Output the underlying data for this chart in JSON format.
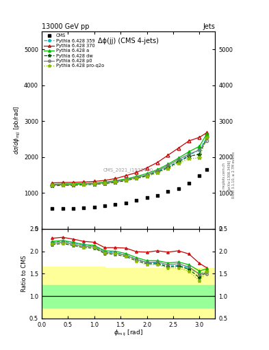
{
  "title_top": "13000 GeV pp",
  "title_right": "Jets",
  "plot_title": "Δϕ(jj) (CMS 4-jets)",
  "ylabel_main": "dσ/dϕ_{mjj} [pb/rad]",
  "ylabel_ratio": "Ratio to CMS",
  "watermark": "CMS_2021_I1932460",
  "rivet_text": "Rivet 3.1.10, ≥ 2.7M events",
  "arxiv_text": "[arXiv:1306.3436]",
  "mcplots_text": "mcplots.cern.ch",
  "x_data": [
    0.2,
    0.4,
    0.6,
    0.8,
    1.0,
    1.2,
    1.4,
    1.6,
    1.8,
    2.0,
    2.2,
    2.4,
    2.6,
    2.8,
    3.0,
    3.14
  ],
  "cms_data": [
    560,
    560,
    570,
    590,
    600,
    650,
    680,
    720,
    800,
    870,
    930,
    1050,
    1120,
    1280,
    1480,
    1650
  ],
  "py_359": [
    1230,
    1245,
    1250,
    1260,
    1270,
    1290,
    1320,
    1370,
    1430,
    1500,
    1600,
    1720,
    1880,
    2050,
    2200,
    2550
  ],
  "py_370": [
    1280,
    1290,
    1295,
    1305,
    1320,
    1350,
    1400,
    1480,
    1570,
    1700,
    1850,
    2050,
    2250,
    2450,
    2550,
    2680
  ],
  "py_a": [
    1240,
    1250,
    1255,
    1265,
    1275,
    1300,
    1340,
    1390,
    1460,
    1540,
    1650,
    1800,
    1970,
    2150,
    2300,
    2650
  ],
  "py_dw": [
    1200,
    1210,
    1215,
    1225,
    1240,
    1260,
    1295,
    1340,
    1410,
    1470,
    1580,
    1700,
    1870,
    2020,
    2080,
    2550
  ],
  "py_p0": [
    1220,
    1230,
    1235,
    1245,
    1258,
    1278,
    1315,
    1360,
    1430,
    1500,
    1620,
    1760,
    1930,
    2080,
    2200,
    2450
  ],
  "py_proq2o": [
    1210,
    1220,
    1225,
    1235,
    1250,
    1270,
    1300,
    1350,
    1400,
    1460,
    1560,
    1680,
    1830,
    1950,
    1980,
    2550
  ],
  "ratio_359": [
    2.2,
    2.22,
    2.19,
    2.14,
    2.12,
    2.0,
    1.97,
    1.92,
    1.82,
    1.75,
    1.74,
    1.67,
    1.68,
    1.63,
    1.49,
    1.55
  ],
  "ratio_370": [
    2.29,
    2.31,
    2.27,
    2.22,
    2.2,
    2.08,
    2.08,
    2.07,
    1.99,
    1.98,
    2.01,
    1.98,
    2.01,
    1.94,
    1.73,
    1.63
  ],
  "ratio_a": [
    2.22,
    2.24,
    2.2,
    2.15,
    2.13,
    2.01,
    2.0,
    1.95,
    1.86,
    1.79,
    1.79,
    1.74,
    1.76,
    1.7,
    1.56,
    1.61
  ],
  "ratio_dw": [
    2.15,
    2.17,
    2.13,
    2.08,
    2.07,
    1.95,
    1.93,
    1.88,
    1.79,
    1.72,
    1.72,
    1.65,
    1.67,
    1.6,
    1.41,
    1.55
  ],
  "ratio_p0": [
    2.18,
    2.2,
    2.16,
    2.11,
    2.1,
    1.97,
    1.96,
    1.91,
    1.82,
    1.75,
    1.76,
    1.7,
    1.72,
    1.65,
    1.49,
    1.49
  ],
  "ratio_proq2o": [
    2.16,
    2.18,
    2.14,
    2.09,
    2.08,
    1.96,
    1.94,
    1.89,
    1.78,
    1.7,
    1.7,
    1.63,
    1.63,
    1.55,
    1.34,
    1.55
  ],
  "band_x": [
    0.0,
    0.2,
    0.4,
    0.6,
    0.8,
    1.0,
    1.2,
    1.4,
    1.6,
    1.8,
    2.0,
    2.2,
    2.4,
    2.6,
    2.8,
    3.0,
    3.14,
    3.3
  ],
  "green_upper": [
    1.25,
    1.25,
    1.25,
    1.25,
    1.25,
    1.25,
    1.25,
    1.25,
    1.25,
    1.25,
    1.25,
    1.25,
    1.25,
    1.25,
    1.25,
    1.25,
    1.25,
    1.25
  ],
  "green_lower": [
    0.75,
    0.75,
    0.75,
    0.75,
    0.75,
    0.75,
    0.75,
    0.75,
    0.75,
    0.75,
    0.75,
    0.75,
    0.75,
    0.75,
    0.75,
    0.75,
    0.75,
    0.75
  ],
  "yellow_upper": [
    1.65,
    1.65,
    1.65,
    1.65,
    1.65,
    1.65,
    1.62,
    1.62,
    1.62,
    1.62,
    1.62,
    1.62,
    1.62,
    1.62,
    1.62,
    1.62,
    1.62,
    1.62
  ],
  "yellow_lower": [
    0.38,
    0.38,
    0.38,
    0.38,
    0.38,
    0.38,
    0.4,
    0.4,
    0.4,
    0.4,
    0.4,
    0.4,
    0.4,
    0.4,
    0.4,
    0.4,
    0.4,
    0.4
  ],
  "ylim_main": [
    0,
    5500
  ],
  "ylim_ratio": [
    0.5,
    2.5
  ],
  "yticks_main": [
    0,
    1000,
    2000,
    3000,
    4000,
    5000
  ],
  "yticks_ratio": [
    0.5,
    1.0,
    1.5,
    2.0,
    2.5
  ],
  "xlim": [
    0,
    3.3
  ],
  "color_359": "#00BBBB",
  "color_370": "#CC0000",
  "color_a": "#00BB00",
  "color_dw": "#005500",
  "color_p0": "#777777",
  "color_proq2o": "#88BB00"
}
